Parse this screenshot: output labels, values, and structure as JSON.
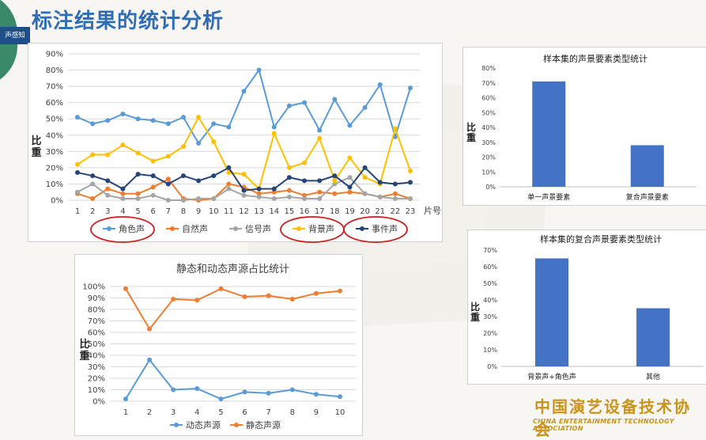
{
  "slide": {
    "title": "标注结果的统计分析",
    "logo_tab": "声感知",
    "footer_cn": "中国演艺设备技术协会",
    "footer_en": "CHINA ENTERTAINMENT TECHNOLOGY ASSOCIATION"
  },
  "chart_data": [
    {
      "id": "main",
      "type": "line",
      "title": "",
      "xlabel": "片号",
      "ylabel": "比重",
      "x": [
        1,
        2,
        3,
        4,
        5,
        6,
        7,
        8,
        9,
        10,
        11,
        12,
        13,
        14,
        15,
        16,
        17,
        18,
        19,
        20,
        21,
        22,
        23
      ],
      "ylim": [
        0,
        90
      ],
      "yticks": [
        "0%",
        "10%",
        "20%",
        "30%",
        "40%",
        "50%",
        "60%",
        "70%",
        "80%",
        "90%"
      ],
      "grid": true,
      "legend": "bottom",
      "highlighted_series": [
        "角色声",
        "背景声",
        "事件声"
      ],
      "series": [
        {
          "name": "角色声",
          "color": "#5b9bd5",
          "values": [
            51,
            47,
            49,
            53,
            50,
            49,
            47,
            51,
            35,
            47,
            45,
            67,
            80,
            45,
            58,
            60,
            43,
            62,
            46,
            57,
            71,
            39,
            69
          ]
        },
        {
          "name": "自然声",
          "color": "#ed7d31",
          "values": [
            4,
            1,
            7,
            4,
            4,
            8,
            13,
            1,
            0,
            1,
            10,
            8,
            4,
            5,
            6,
            3,
            5,
            4,
            5,
            4,
            2,
            4,
            1
          ]
        },
        {
          "name": "信号声",
          "color": "#a5a5a5",
          "values": [
            5,
            10,
            3,
            1,
            1,
            3,
            0,
            0,
            1,
            1,
            7,
            3,
            2,
            1,
            2,
            1,
            1,
            10,
            14,
            4,
            2,
            1,
            1
          ]
        },
        {
          "name": "背景声",
          "color": "#ffc000",
          "values": [
            22,
            28,
            28,
            34,
            29,
            24,
            27,
            33,
            51,
            36,
            17,
            16,
            7,
            41,
            20,
            23,
            38,
            12,
            26,
            14,
            10,
            44,
            18
          ]
        },
        {
          "name": "事件声",
          "color": "#264478",
          "values": [
            17,
            15,
            12,
            7,
            16,
            15,
            10,
            15,
            12,
            15,
            20,
            6,
            7,
            7,
            14,
            12,
            12,
            15,
            8,
            20,
            11,
            10,
            11
          ]
        }
      ]
    },
    {
      "id": "static_dynamic",
      "type": "line",
      "title": "静态和动态声源占比统计",
      "ylabel": "比重",
      "x": [
        1,
        2,
        3,
        4,
        5,
        6,
        7,
        8,
        9,
        10
      ],
      "ylim": [
        0,
        100
      ],
      "yticks": [
        "0%",
        "10%",
        "20%",
        "30%",
        "40%",
        "50%",
        "60%",
        "70%",
        "80%",
        "90%",
        "100%"
      ],
      "grid": true,
      "legend": "bottom",
      "series": [
        {
          "name": "动态声源",
          "color": "#5b9bd5",
          "values": [
            2,
            36,
            10,
            11,
            2,
            8,
            7,
            10,
            6,
            4
          ]
        },
        {
          "name": "静态声源",
          "color": "#ed7d31",
          "values": [
            98,
            63,
            89,
            88,
            98,
            91,
            92,
            89,
            94,
            96
          ]
        }
      ]
    },
    {
      "id": "soundscape_types",
      "type": "bar",
      "title": "样本集的声景要素类型统计",
      "ylabel": "比重",
      "categories": [
        "单一声景要素",
        "复合声景要素"
      ],
      "values": [
        71,
        28
      ],
      "ylim": [
        0,
        80
      ],
      "yticks": [
        "0%",
        "10%",
        "20%",
        "30%",
        "40%",
        "50%",
        "60%",
        "70%",
        "80%"
      ],
      "color": "#4472c4"
    },
    {
      "id": "compound_types",
      "type": "bar",
      "title": "样本集的复合声景要素类型统计",
      "ylabel": "比重",
      "categories": [
        "背景声+角色声",
        "其他"
      ],
      "values": [
        65,
        35
      ],
      "ylim": [
        0,
        70
      ],
      "yticks": [
        "0%",
        "10%",
        "20%",
        "30%",
        "40%",
        "50%",
        "60%",
        "70%"
      ],
      "color": "#4472c4"
    }
  ]
}
